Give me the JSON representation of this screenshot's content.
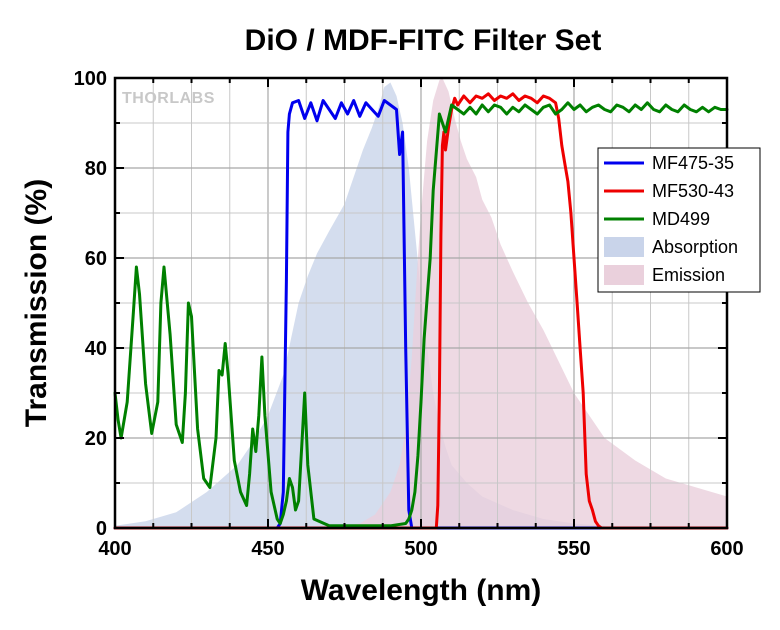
{
  "chart_data": {
    "type": "line",
    "title": "DiO / MDF-FITC Filter Set",
    "xlabel": "Wavelength (nm)",
    "ylabel": "Transmission (%)",
    "xlim": [
      400,
      600
    ],
    "ylim": [
      0,
      100
    ],
    "xticks": [
      400,
      450,
      500,
      550,
      600
    ],
    "yticks": [
      0,
      20,
      40,
      60,
      80,
      100
    ],
    "grid": true,
    "legend_position": "right",
    "watermark": "THORLABS",
    "series": [
      {
        "name": "MF475-35",
        "kind": "line",
        "color": "#0000ee",
        "x": [
          400,
          453,
          454,
          455,
          456,
          456.5,
          457,
          458,
          460,
          462,
          464,
          466,
          468,
          470,
          472,
          474,
          476,
          478,
          480,
          482,
          484,
          486,
          488,
          490,
          492,
          493,
          494,
          495,
          496,
          497,
          500,
          600
        ],
        "y": [
          0,
          0,
          1,
          8,
          55,
          88,
          92,
          94.5,
          95,
          91,
          94.5,
          90.5,
          95,
          93,
          91,
          94.5,
          92,
          95,
          91.5,
          94.5,
          93,
          91.5,
          95,
          94,
          93,
          83,
          88,
          40,
          4,
          0,
          0,
          0
        ]
      },
      {
        "name": "MF530-43",
        "kind": "line",
        "color": "#ee0000",
        "x": [
          400,
          505,
          505.5,
          506,
          506.5,
          507,
          507.5,
          508,
          509,
          510,
          511,
          512,
          514,
          516,
          518,
          520,
          522,
          524,
          526,
          528,
          530,
          532,
          534,
          536,
          538,
          540,
          542,
          544,
          545,
          546,
          547,
          548,
          549,
          550,
          551,
          552,
          553,
          554,
          555,
          556,
          557,
          558,
          559,
          560,
          600
        ],
        "y": [
          0,
          0,
          5,
          30,
          65,
          85,
          88,
          84,
          89,
          93,
          95.5,
          94,
          96,
          94.5,
          96,
          95.5,
          96.5,
          95,
          96,
          95.5,
          96.5,
          95,
          96,
          95.5,
          94.5,
          96,
          95.5,
          94.5,
          91,
          85,
          81,
          77,
          70,
          60,
          50,
          40,
          30,
          12,
          6,
          4,
          1.5,
          0.5,
          0,
          0,
          0
        ]
      },
      {
        "name": "MD499",
        "kind": "line",
        "color": "#008000",
        "x": [
          400,
          401,
          402,
          404,
          406,
          407,
          408,
          410,
          412,
          414,
          415,
          416,
          418,
          420,
          422,
          423,
          424,
          425,
          427,
          429,
          431,
          433,
          434,
          435,
          436,
          437,
          439,
          441,
          443,
          444,
          445,
          446,
          447,
          448,
          449,
          451,
          453,
          454,
          455,
          456,
          457,
          458,
          459,
          460,
          461,
          462,
          463,
          465,
          470,
          480,
          490,
          495,
          496,
          497,
          498,
          499,
          500,
          501,
          502,
          503,
          504,
          506,
          508,
          510,
          512,
          514,
          516,
          518,
          520,
          522,
          524,
          526,
          528,
          530,
          532,
          534,
          536,
          538,
          540,
          542,
          544,
          546,
          548,
          550,
          552,
          554,
          556,
          558,
          560,
          562,
          564,
          566,
          568,
          570,
          572,
          574,
          576,
          578,
          580,
          582,
          584,
          586,
          588,
          590,
          592,
          594,
          596,
          598,
          600
        ],
        "y": [
          30,
          24,
          20,
          28,
          48,
          58,
          52,
          32,
          21,
          28,
          50,
          58,
          43,
          23,
          19,
          30,
          50,
          47,
          22,
          11,
          9,
          20,
          35,
          34,
          41,
          34,
          15,
          8,
          5,
          12,
          22,
          17,
          25,
          38,
          25,
          8,
          2,
          1,
          3,
          6,
          11,
          9,
          4,
          6,
          18,
          30,
          14,
          2,
          0.5,
          0.5,
          0.5,
          1,
          2,
          4,
          8,
          16,
          28,
          42,
          51,
          60,
          75,
          92,
          88,
          94,
          93,
          92,
          93.5,
          92,
          94,
          92.5,
          94,
          93.5,
          92,
          93.5,
          92.5,
          94,
          93,
          92,
          93.5,
          94,
          92,
          93,
          94.5,
          93,
          94,
          92.5,
          93.5,
          94,
          93,
          92.5,
          94,
          93.5,
          92.5,
          94,
          93,
          94.5,
          93,
          92.5,
          94,
          93,
          92.5,
          94,
          93,
          92.5,
          93.5,
          92.5,
          93.5,
          93,
          93
        ]
      },
      {
        "name": "Absorption",
        "kind": "area",
        "color": "#c9d4ea",
        "x": [
          400,
          410,
          420,
          430,
          440,
          445,
          450,
          455,
          460,
          463,
          466,
          470,
          475,
          478,
          481,
          484,
          486,
          488,
          490,
          492,
          494,
          496,
          498,
          500,
          502,
          504,
          506,
          508,
          510,
          515,
          520,
          530,
          540,
          550,
          560
        ],
        "y": [
          0.5,
          1.5,
          3.5,
          8,
          14,
          19,
          25,
          34,
          50,
          56,
          61,
          66,
          72,
          78,
          84,
          89,
          93,
          98,
          99,
          96,
          90,
          80,
          66,
          52,
          40,
          30,
          23,
          18,
          14,
          10,
          7,
          4,
          2,
          1,
          0.5
        ]
      },
      {
        "name": "Emission",
        "kind": "area",
        "color": "#ead0dc",
        "x": [
          474,
          480,
          485,
          490,
          493,
          495,
          497,
          499,
          500,
          502,
          504,
          506,
          507,
          509,
          511,
          513,
          515,
          518,
          520,
          523,
          526,
          530,
          535,
          540,
          545,
          550,
          555,
          560,
          570,
          580,
          590,
          600
        ],
        "y": [
          0.5,
          1,
          3,
          8,
          14,
          22,
          38,
          60,
          70,
          86,
          95,
          99.5,
          100,
          97,
          91,
          86,
          82,
          78,
          73,
          69,
          63,
          57,
          50,
          44,
          37,
          30,
          25,
          20,
          15,
          11,
          9,
          7
        ]
      }
    ]
  }
}
